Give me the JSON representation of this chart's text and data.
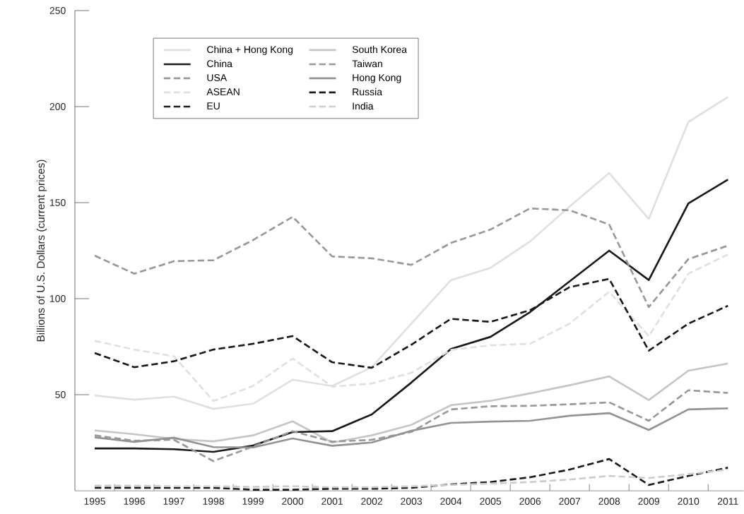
{
  "chart_data": {
    "type": "line",
    "ylabel": "Billions of U.S. Dollars (current prices)",
    "x": [
      1995,
      1996,
      1997,
      1998,
      1999,
      2000,
      2001,
      2002,
      2003,
      2004,
      2005,
      2006,
      2007,
      2008,
      2009,
      2010,
      2011
    ],
    "xlim": [
      1994.5,
      2011.4
    ],
    "ylim": [
      0,
      250
    ],
    "yticks": [
      50,
      100,
      150,
      200,
      250
    ],
    "xticks": [
      1995,
      1996,
      1997,
      1998,
      1999,
      2000,
      2001,
      2002,
      2003,
      2004,
      2005,
      2006,
      2007,
      2008,
      2009,
      2010,
      2011,
      {
        "value": 1995.5,
        "label": null
      },
      {
        "value": 1996.5,
        "label": null
      },
      {
        "value": 1997.5,
        "label": null
      },
      {
        "value": 1998.5,
        "label": null
      },
      {
        "value": 1999.5,
        "label": null
      },
      {
        "value": 2000.5,
        "label": null
      },
      {
        "value": 2001.5,
        "label": null
      },
      {
        "value": 2002.5,
        "label": null
      },
      {
        "value": 2003.5,
        "label": null
      },
      {
        "value": 2004.5,
        "label": null
      },
      {
        "value": 2005.5,
        "label": null
      },
      {
        "value": 2006.5,
        "label": null
      },
      {
        "value": 2007.5,
        "label": null
      },
      {
        "value": 2008.5,
        "label": null
      },
      {
        "value": 2009.5,
        "label": null
      },
      {
        "value": 2010.5,
        "label": null
      }
    ],
    "legend": "top left",
    "marker": "none",
    "grid": false,
    "series": [
      {
        "name": "China + Hong Kong",
        "color": "#e0e0e0",
        "line_style": "solid",
        "values": [
          49.6,
          47.4,
          49,
          42.6,
          45.3,
          57.8,
          54.5,
          64.3,
          87,
          109.6,
          116,
          129.8,
          148,
          165.4,
          141.5,
          192,
          205
        ]
      },
      {
        "name": "South Korea",
        "color": "#c6c6c6",
        "line_style": "solid",
        "values": [
          31.4,
          29.4,
          27,
          25.7,
          28.8,
          36.1,
          25.1,
          28.8,
          34.3,
          44.5,
          46.8,
          50.7,
          54.9,
          59.5,
          47.2,
          62.5,
          66.2
        ]
      },
      {
        "name": "China",
        "color": "#1a1a1a",
        "line_style": "solid",
        "values": [
          22,
          22,
          21.6,
          20.2,
          23.5,
          30.5,
          31,
          39.7,
          56.3,
          73.8,
          80.1,
          93,
          109,
          125,
          109.7,
          149.6,
          162
        ]
      },
      {
        "name": "Taiwan",
        "color": "#999999",
        "line_style": "dashed",
        "values": [
          28.8,
          26,
          26.5,
          15.4,
          23,
          31,
          25.5,
          26.5,
          30.6,
          42.3,
          44,
          44.2,
          45,
          46,
          36.4,
          52.3,
          50.9
        ]
      },
      {
        "name": "USA",
        "color": "#999999",
        "line_style": "dashed",
        "values": [
          122.4,
          113,
          119.5,
          120,
          130.5,
          142.6,
          122,
          121,
          117.6,
          129,
          136,
          147,
          146,
          138.6,
          95.6,
          120.6,
          127.6
        ]
      },
      {
        "name": "Hong Kong",
        "color": "#939393",
        "line_style": "solid",
        "values": [
          27.8,
          25.4,
          27.6,
          22.7,
          22.5,
          27.2,
          23.4,
          25.1,
          31.2,
          35.3,
          36,
          36.4,
          39,
          40.4,
          31.6,
          42.3,
          42.9
        ]
      },
      {
        "name": "ASEAN",
        "color": "#e0e0e0",
        "line_style": "dashed",
        "values": [
          78,
          73.5,
          70,
          46.7,
          54.5,
          68.8,
          54.2,
          55.8,
          61.4,
          73.3,
          75.7,
          76.5,
          87,
          103.6,
          80.5,
          113,
          123
        ]
      },
      {
        "name": "Russia",
        "color": "#1a1a1a",
        "line_style": "dashed",
        "values": [
          1.5,
          1.5,
          1.5,
          1.5,
          0.5,
          0.5,
          1,
          1,
          1.5,
          3.3,
          4.5,
          7,
          11,
          16.5,
          3,
          7.7,
          12
        ]
      },
      {
        "name": "EU",
        "color": "#1a1a1a",
        "line_style": "dashed",
        "values": [
          71.7,
          64.3,
          67.4,
          73.5,
          76.5,
          80.5,
          66.9,
          64,
          76,
          89.5,
          87.9,
          94,
          106,
          110.3,
          72.9,
          87,
          96.3
        ]
      },
      {
        "name": "India",
        "color": "#cccccc",
        "line_style": "dashed",
        "values": [
          2.6,
          2.6,
          2.3,
          2.3,
          2,
          2.3,
          1.8,
          1.8,
          2.3,
          3,
          3.7,
          4.5,
          5.8,
          7.7,
          6.6,
          8.6,
          11
        ]
      }
    ]
  }
}
